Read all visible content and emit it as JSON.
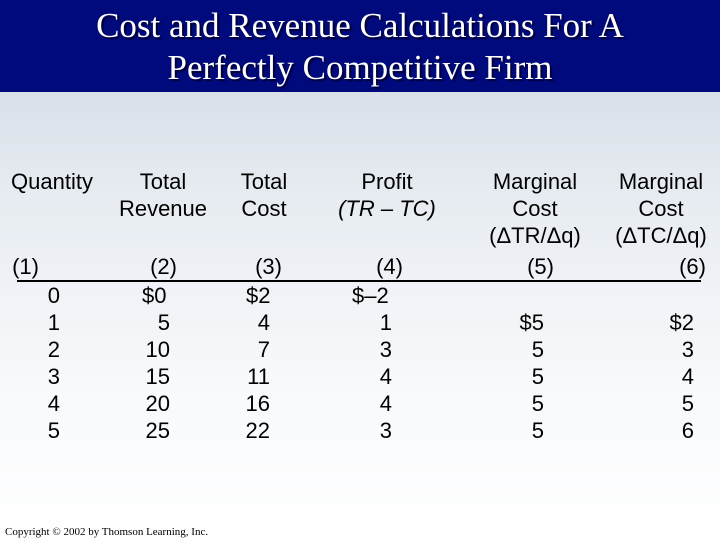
{
  "title": {
    "line1": "Cost and Revenue Calculations For A",
    "line2": "Perfectly Competitive Firm"
  },
  "table": {
    "headers": [
      {
        "lines": [
          "Quantity"
        ],
        "number": "(1)"
      },
      {
        "lines": [
          "Total",
          "Revenue"
        ],
        "number": "(2)"
      },
      {
        "lines": [
          "Total",
          "Cost"
        ],
        "number": "(3)"
      },
      {
        "lines": [
          "Profit",
          "(TR – TC)"
        ],
        "number": "(4)"
      },
      {
        "lines": [
          "Marginal",
          "Cost",
          "(ΔTR/Δq)"
        ],
        "number": "(5)"
      },
      {
        "lines": [
          "Marginal",
          "Cost",
          "(ΔTC/Δq)"
        ],
        "number": "(6)"
      }
    ],
    "rows": [
      [
        "0",
        "$0",
        "$2",
        "$–2",
        "",
        ""
      ],
      [
        "1",
        "5",
        "4",
        "1",
        "$5",
        "$2"
      ],
      [
        "2",
        "10",
        "7",
        "3",
        "5",
        "3"
      ],
      [
        "3",
        "15",
        "11",
        "4",
        "5",
        "4"
      ],
      [
        "4",
        "20",
        "16",
        "4",
        "5",
        "5"
      ],
      [
        "5",
        "25",
        "22",
        "3",
        "5",
        "6"
      ]
    ]
  },
  "footer": {
    "copyright": "Copyright © 2002 by Thomson Learning, Inc."
  }
}
